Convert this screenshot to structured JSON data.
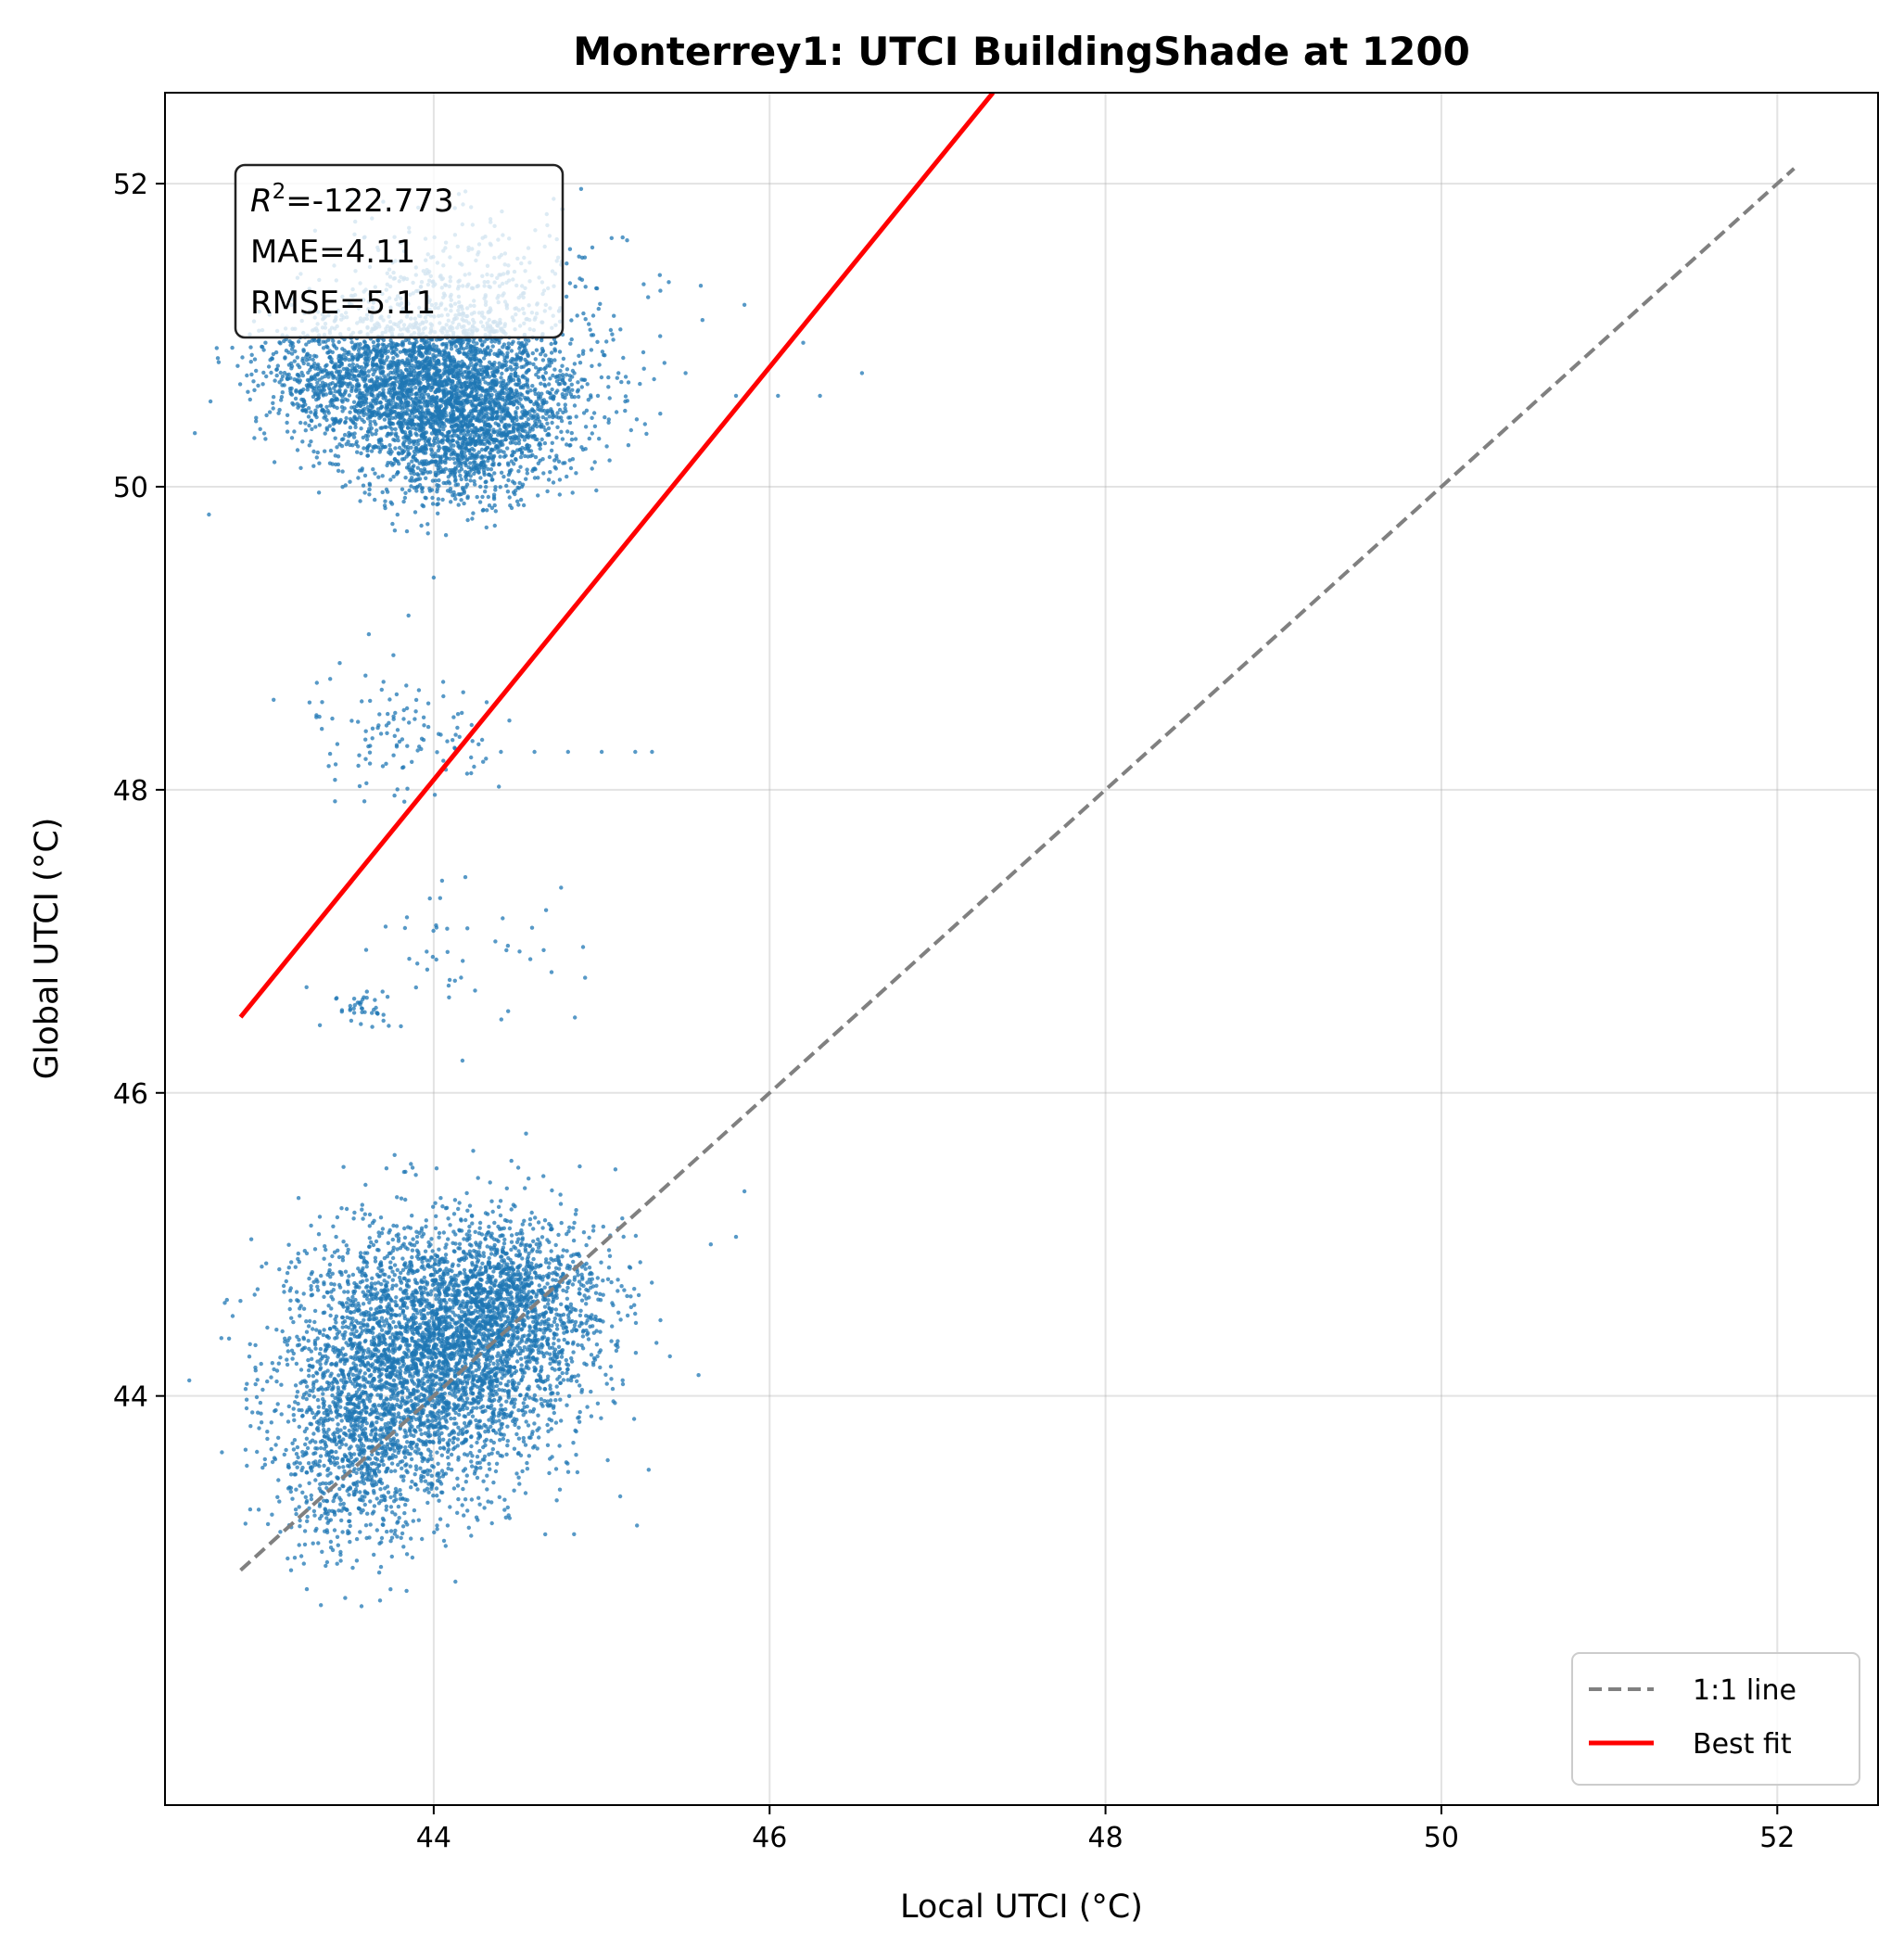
{
  "chart_data": {
    "type": "scatter",
    "title": "Monterrey1: UTCI BuildingShade at 1200",
    "xlabel": "Local UTCI (°C)",
    "ylabel": "Global UTCI (°C)",
    "xlim": [
      42.4,
      52.6
    ],
    "ylim": [
      41.3,
      52.6
    ],
    "xticks": [
      "44",
      "46",
      "48",
      "50",
      "52"
    ],
    "yticks": [
      "44",
      "46",
      "48",
      "50",
      "52"
    ],
    "grid": true,
    "legend_position": "lower-right",
    "stats": {
      "r2_symbol": "R",
      "r2_sup": "2",
      "r2_value": "=-122.773",
      "mae": "MAE=4.11",
      "rmse": "RMSE=5.11"
    },
    "series": [
      {
        "name": "1:1 line",
        "kind": "line",
        "style": "dashed",
        "color": "#808080",
        "x": [
          42.85,
          52.1
        ],
        "y": [
          42.85,
          52.1
        ]
      },
      {
        "name": "Best fit",
        "kind": "line",
        "style": "solid",
        "color": "#ff0000",
        "x": [
          42.85,
          47.33
        ],
        "y": [
          46.5,
          52.6
        ]
      },
      {
        "kind": "scatter",
        "color": "#1f77b4",
        "clusters": [
          {
            "cx": 44.15,
            "cy": 50.6,
            "sx": 0.38,
            "sy": 0.28,
            "n": 2600
          },
          {
            "cx": 43.55,
            "cy": 50.75,
            "sx": 0.3,
            "sy": 0.2,
            "n": 900
          },
          {
            "cx": 44.15,
            "cy": 50.25,
            "sx": 0.25,
            "sy": 0.2,
            "n": 500
          },
          {
            "cx": 44.2,
            "cy": 51.3,
            "sx": 0.45,
            "sy": 0.25,
            "n": 350
          },
          {
            "cx": 43.8,
            "cy": 48.4,
            "sx": 0.28,
            "sy": 0.2,
            "n": 120
          },
          {
            "cx": 43.6,
            "cy": 46.55,
            "sx": 0.12,
            "sy": 0.06,
            "n": 40
          },
          {
            "cx": 44.2,
            "cy": 46.95,
            "sx": 0.3,
            "sy": 0.25,
            "n": 45
          },
          {
            "cx": 43.95,
            "cy": 44.25,
            "sx": 0.4,
            "sy": 0.42,
            "n": 3400
          },
          {
            "cx": 44.45,
            "cy": 44.6,
            "sx": 0.3,
            "sy": 0.3,
            "n": 1200
          },
          {
            "cx": 43.5,
            "cy": 43.6,
            "sx": 0.25,
            "sy": 0.35,
            "n": 700
          }
        ],
        "points": [
          [
            45.3,
            48.25
          ],
          [
            45.2,
            48.25
          ],
          [
            45.0,
            48.25
          ],
          [
            44.8,
            48.25
          ],
          [
            44.6,
            48.25
          ],
          [
            44.4,
            48.25
          ],
          [
            45.1,
            50.75
          ],
          [
            45.5,
            50.75
          ],
          [
            45.8,
            50.6
          ],
          [
            46.05,
            50.6
          ],
          [
            46.3,
            50.6
          ],
          [
            46.55,
            50.75
          ],
          [
            46.2,
            50.95
          ],
          [
            45.85,
            51.2
          ],
          [
            45.6,
            51.1
          ],
          [
            45.4,
            51.35
          ],
          [
            45.65,
            45.0
          ],
          [
            45.8,
            45.05
          ],
          [
            45.85,
            45.35
          ],
          [
            45.35,
            44.5
          ],
          [
            45.1,
            44.55
          ],
          [
            44.0,
            49.4
          ],
          [
            43.85,
            49.15
          ],
          [
            44.05,
            47.4
          ]
        ]
      }
    ]
  }
}
